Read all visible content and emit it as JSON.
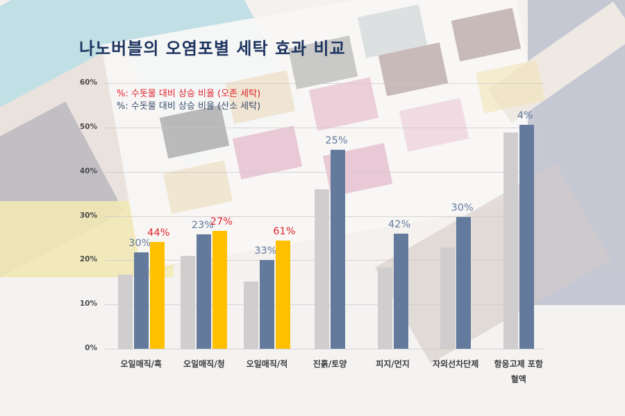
{
  "title": "나노버블의 오염포별 세탁 효과 비교",
  "legend": {
    "ozone": {
      "prefix": "%:",
      "text": " 수돗물 대비 상승 비율 (오존 세탁)",
      "color": "#e0242c"
    },
    "oxygen": {
      "prefix": "%:",
      "text": " 수돗물 대비 상승 비율 (산소 세탁)",
      "color": "#3d4e6e"
    }
  },
  "y_axis": {
    "ticks": [
      "0%",
      "10%",
      "20%",
      "30%",
      "40%",
      "50%",
      "60%"
    ]
  },
  "x_axis": {
    "labels": [
      "오일매직/흑",
      "오일매직/청",
      "오일매직/적",
      "진흙/토양",
      "피지/먼지",
      "자외선차단제",
      "항응고제 포함",
      "혈액"
    ]
  },
  "colors": {
    "tap_water": "#cfcdcd",
    "oxygen": "#637a9c",
    "ozone": "#ffc000",
    "ozone_label": "#e0242c",
    "oxygen_label": "#637a9c",
    "title": "#1e3560"
  },
  "chart_data": {
    "type": "bar",
    "title": "나노버블의 오염포별 세탁 효과 비교",
    "xlabel": "",
    "ylabel": "",
    "ylim": [
      0,
      60
    ],
    "y_unit": "%",
    "grid": true,
    "legend_position": "top-left (text annotations)",
    "categories": [
      "오일매직/흑",
      "오일매직/청",
      "오일매직/적",
      "진흙/토양",
      "피지/먼지",
      "자외선차단제",
      "항응고제 포함 혈액"
    ],
    "series": [
      {
        "name": "수돗물 세탁",
        "color": "#cfcdcd",
        "values": [
          16.8,
          21.0,
          15.2,
          36.0,
          18.3,
          22.9,
          48.9
        ]
      },
      {
        "name": "산소 세탁",
        "color": "#637a9c",
        "values": [
          21.8,
          25.8,
          20.1,
          45.0,
          26.0,
          29.8,
          50.6
        ],
        "data_labels": [
          "30%",
          "23%",
          "33%",
          "25%",
          "42%",
          "30%",
          "4%"
        ]
      },
      {
        "name": "오존 세탁",
        "color": "#ffc000",
        "values": [
          24.1,
          26.6,
          24.4,
          null,
          null,
          null,
          null
        ],
        "data_labels": [
          "44%",
          "27%",
          "61%",
          null,
          null,
          null,
          null
        ]
      }
    ],
    "annotations": [
      "%: 수돗물 대비 상승 비율 (오존 세탁)",
      "%: 수돗물 대비 상승 비율 (산소 세탁)"
    ]
  }
}
